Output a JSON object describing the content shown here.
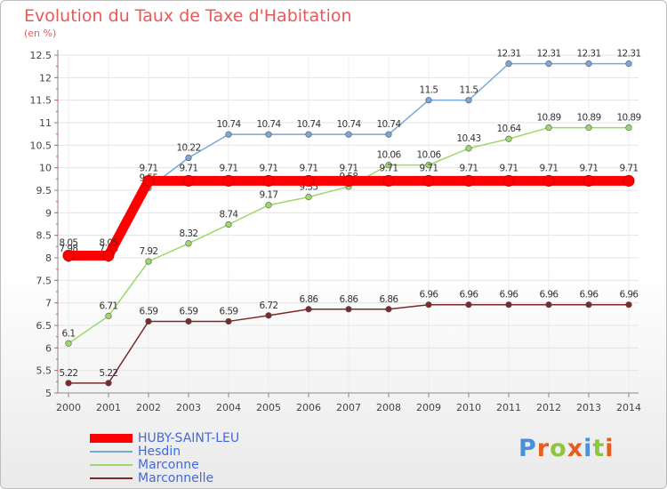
{
  "title": "Evolution du Taux de Taxe d'Habitation",
  "unit": "(en %)",
  "logo": {
    "letters": [
      "P",
      "r",
      "o",
      "x",
      "i",
      "t",
      "i"
    ],
    "colors": [
      "#4a90d9",
      "#e95c1f",
      "#8cc63f",
      "#e95c1f",
      "#4a90d9",
      "#8cc63f",
      "#e95c1f"
    ]
  },
  "chart_data": {
    "type": "line",
    "title": "Evolution du Taux de Taxe d'Habitation",
    "ylabel": "(en %)",
    "x": [
      "2000",
      "2001",
      "2002",
      "2003",
      "2004",
      "2005",
      "2006",
      "2007",
      "2008",
      "2009",
      "2010",
      "2011",
      "2012",
      "2013",
      "2014"
    ],
    "ylim": [
      5,
      12.5
    ],
    "yticks": [
      "5",
      "5.5",
      "6",
      "6.5",
      "7",
      "7.5",
      "8",
      "8.5",
      "9",
      "9.5",
      "10",
      "10.5",
      "11",
      "11.5",
      "12",
      "12.5"
    ],
    "grid": true,
    "legend": "bottom-left",
    "series": [
      {
        "name": "Marconnelle",
        "color": "#7b2a2a",
        "thick": false,
        "values": [
          5.22,
          5.22,
          6.59,
          6.59,
          6.59,
          6.72,
          6.86,
          6.86,
          6.86,
          6.96,
          6.96,
          6.96,
          6.96,
          6.96,
          6.96
        ],
        "labels": [
          "5.22",
          "5.22",
          "6.59",
          "6.59",
          "6.59",
          "6.72",
          "6.86",
          "6.86",
          "6.86",
          "6.96",
          "6.96",
          "6.96",
          "6.96",
          "6.96",
          "6.96"
        ]
      },
      {
        "name": "Marconne",
        "color": "#9ed86a",
        "thick": false,
        "values": [
          6.1,
          6.71,
          7.92,
          8.32,
          8.74,
          9.17,
          9.35,
          9.58,
          10.06,
          10.06,
          10.43,
          10.64,
          10.89,
          10.89,
          10.89
        ],
        "labels": [
          "6.1",
          "6.71",
          "7.92",
          "8.32",
          "8.74",
          "9.17",
          "9.35",
          "9.58",
          "10.06",
          "10.06",
          "10.43",
          "10.64",
          "10.89",
          "10.89",
          "10.89"
        ]
      },
      {
        "name": "Hesdin",
        "color": "#7aa8d8",
        "thick": false,
        "values": [
          7.98,
          7.98,
          9.55,
          10.22,
          10.74,
          10.74,
          10.74,
          10.74,
          10.74,
          11.5,
          11.5,
          12.31,
          12.31,
          12.31,
          12.31
        ],
        "labels": [
          "7.98",
          "7.98",
          "9.55",
          "10.22",
          "10.74",
          "10.74",
          "10.74",
          "10.74",
          "10.74",
          "11.5",
          "11.5",
          "12.31",
          "12.31",
          "12.31",
          "12.31"
        ]
      },
      {
        "name": "HUBY-SAINT-LEU",
        "color": "#ff0000",
        "thick": true,
        "values": [
          8.05,
          8.05,
          9.71,
          9.71,
          9.71,
          9.71,
          9.71,
          9.71,
          9.71,
          9.71,
          9.71,
          9.71,
          9.71,
          9.71,
          9.71
        ],
        "labels": [
          "8.05",
          "8.05",
          "9.71",
          "9.71",
          "9.71",
          "9.71",
          "9.71",
          "9.71",
          "9.71",
          "9.71",
          "9.71",
          "9.71",
          "9.71",
          "9.71",
          "9.71"
        ]
      }
    ]
  },
  "legend_order": [
    3,
    2,
    1,
    0
  ]
}
